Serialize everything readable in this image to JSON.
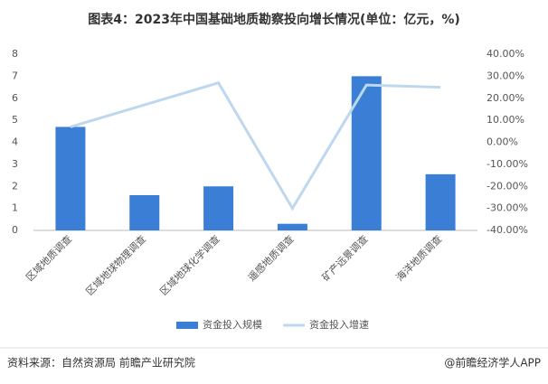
{
  "title": "图表4：2023年中国基础地质勘察投向增长情况(单位：亿元，%)",
  "chart_data": {
    "type": "bar",
    "categories": [
      "区域地质调查",
      "区域地球物理调查",
      "区域地球化学调查",
      "遥感地质调查",
      "矿产远景调查",
      "海洋地质调查"
    ],
    "series": [
      {
        "name": "资金投入规模",
        "type": "bar",
        "color": "#3a7fd5",
        "values": [
          4.7,
          1.6,
          2.0,
          0.3,
          7.0,
          2.55
        ]
      },
      {
        "name": "资金投入增速",
        "type": "line",
        "axis": "y2",
        "color": "#bdd7ee",
        "values": [
          7,
          17,
          27,
          -30,
          26,
          25
        ]
      }
    ],
    "ylim": [
      0,
      8
    ],
    "yticks": [
      0,
      1,
      2,
      3,
      4,
      5,
      6,
      7,
      8
    ],
    "y2lim": [
      -40,
      40
    ],
    "y2ticks": [
      {
        "value": -40,
        "label": "-40.00%"
      },
      {
        "value": -30,
        "label": "-30.00%"
      },
      {
        "value": -20,
        "label": "-20.00%"
      },
      {
        "value": -10,
        "label": "-10.00%"
      },
      {
        "value": 0,
        "label": "0.00%"
      },
      {
        "value": 10,
        "label": "10.00%"
      },
      {
        "value": 20,
        "label": "20.00%"
      },
      {
        "value": 30,
        "label": "30.00%"
      },
      {
        "value": 40,
        "label": "40.00%"
      }
    ],
    "grid": false,
    "legend": "bottom"
  },
  "source": "资料来源：自然资源局 前瞻产业研究院",
  "brand": "@前瞻经济学人APP"
}
